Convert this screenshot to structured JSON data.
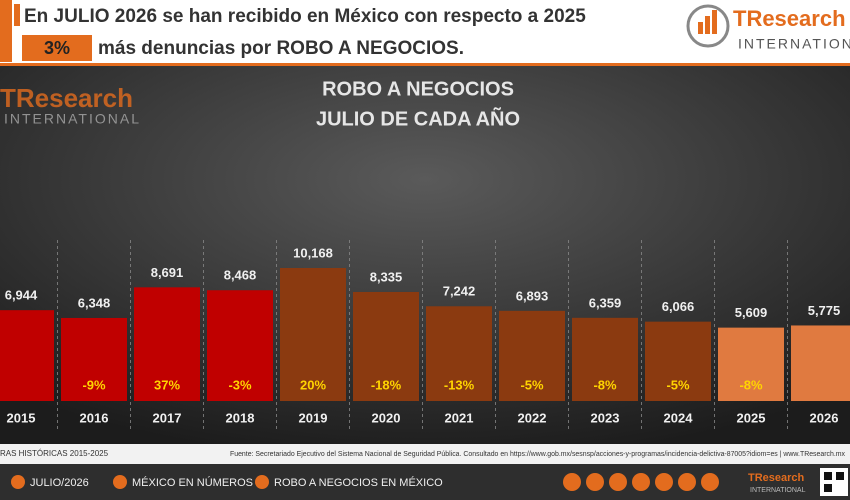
{
  "header": {
    "line1": "En JULIO 2026 se han recibido en México con respecto a 2025",
    "highlight": "3%",
    "line2": "más denuncias por ROBO A NEGOCIOS.",
    "logo_main": "TResearch",
    "logo_sub": "INTERNATIONAL"
  },
  "chart_data": {
    "type": "bar",
    "title": "ROBO A NEGOCIOS",
    "subtitle": "JULIO DE CADA AÑO",
    "categories": [
      "2015",
      "2016",
      "2017",
      "2018",
      "2019",
      "2020",
      "2021",
      "2022",
      "2023",
      "2024",
      "2025",
      "2026"
    ],
    "values": [
      6944,
      6348,
      8691,
      8468,
      10168,
      8335,
      7242,
      6893,
      6359,
      6066,
      5609,
      5775
    ],
    "value_labels": [
      "6,944",
      "6,348",
      "8,691",
      "8,468",
      "10,168",
      "8,335",
      "7,242",
      "6,893",
      "6,359",
      "6,066",
      "5,609",
      "5,775"
    ],
    "changes": [
      null,
      -9,
      37,
      -3,
      20,
      -18,
      -13,
      -5,
      -8,
      -5,
      -8,
      null
    ],
    "change_labels": [
      null,
      "-9%",
      "37%",
      "-3%",
      "20%",
      "-18%",
      "-13%",
      "-5%",
      "-8%",
      "-5%",
      "-8%",
      null
    ],
    "colors": [
      "#c00000",
      "#c00000",
      "#c00000",
      "#c00000",
      "#8b3a10",
      "#8b3a10",
      "#8b3a10",
      "#8b3a10",
      "#8b3a10",
      "#8b3a10",
      "#e07a40",
      "#e07a40"
    ]
  },
  "watermark": {
    "main": "TResearch",
    "sub": "INTERNATIONAL"
  },
  "footer": {
    "period": "RAS HISTÓRICAS 2015-2025",
    "source": "Fuente: Secretariado Ejecutivo del Sistema Nacional de Seguridad Pública. Consultado en https://www.gob.mx/sesnsp/acciones-y-programas/incidencia-delictiva-87005?idiom=es | www.TResearch.mx",
    "nav": [
      "JULIO/2026",
      "MÉXICO EN NÚMEROS",
      "ROBO A NEGOCIOS EN MÉXICO"
    ],
    "logo_main": "TResearch",
    "logo_sub": "INTERNATIONAL"
  }
}
